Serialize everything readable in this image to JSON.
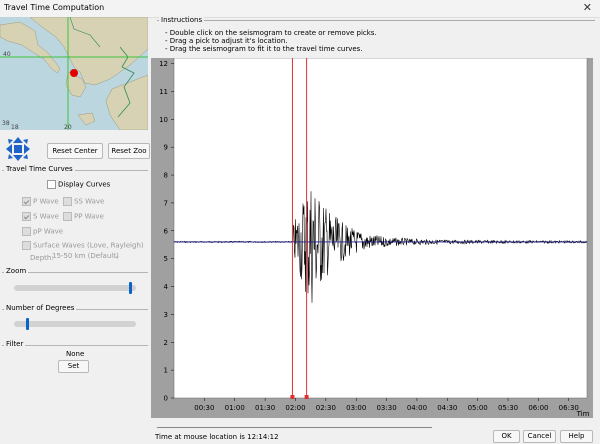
{
  "window": {
    "title": "Travel Time Computation",
    "close_glyph": "✕"
  },
  "map": {
    "lat_labels": [
      "40",
      "38"
    ],
    "lon_labels": [
      "18",
      "20"
    ],
    "station_color": "#e00000"
  },
  "map_controls": {
    "reset_center": "Reset Center",
    "reset_zoom": "Reset Zoo"
  },
  "travel_time_curves": {
    "label": "Travel Time Curves",
    "display_curves": "Display Curves",
    "options": [
      {
        "label": "P Wave",
        "checked": true
      },
      {
        "label": "SS Wave",
        "checked": false
      },
      {
        "label": "S Wave",
        "checked": true
      },
      {
        "label": "PP Wave",
        "checked": false
      },
      {
        "label": "pP Wave",
        "checked": false
      },
      {
        "label": "Surface Waves (Love, Rayleigh)",
        "checked": false
      }
    ],
    "depth_label": "Depth:",
    "depth_value": "15-50 km (Default)"
  },
  "zoom": {
    "label": "Zoom",
    "level": 0.97
  },
  "degrees": {
    "label": "Number of Degrees",
    "level": 0.1
  },
  "filter": {
    "label": "Filter",
    "value": "None",
    "set_button": "Set"
  },
  "instructions": {
    "heading": "Instructions",
    "lines": [
      "- Double click on the seismogram to create or remove picks.",
      "- Drag a pick to adjust it's location.",
      "- Drag the seismogram to fit it to the travel time curves."
    ]
  },
  "seismogram": {
    "y_ticks": [
      "12",
      "11",
      "10",
      "9",
      "8",
      "7",
      "6",
      "5",
      "4",
      "3",
      "2",
      "1",
      "0"
    ],
    "x_ticks": [
      "00:30",
      "01:00",
      "01:30",
      "02:00",
      "02:30",
      "03:00",
      "03:30",
      "04:00",
      "04:30",
      "05:00",
      "05:30",
      "06:00",
      "06:30"
    ],
    "x_axis_title": "Tim",
    "baseline": 5.6,
    "picks": [
      "01:57",
      "02:11"
    ],
    "arrival": "01:58",
    "pick_color": "#e03030",
    "trace_color": "#000000",
    "line_color": "#1a1a8c"
  },
  "status": {
    "text": "Time at mouse location is 12:14:12"
  },
  "buttons": {
    "ok": "OK",
    "cancel": "Cancel",
    "help": "Help"
  }
}
